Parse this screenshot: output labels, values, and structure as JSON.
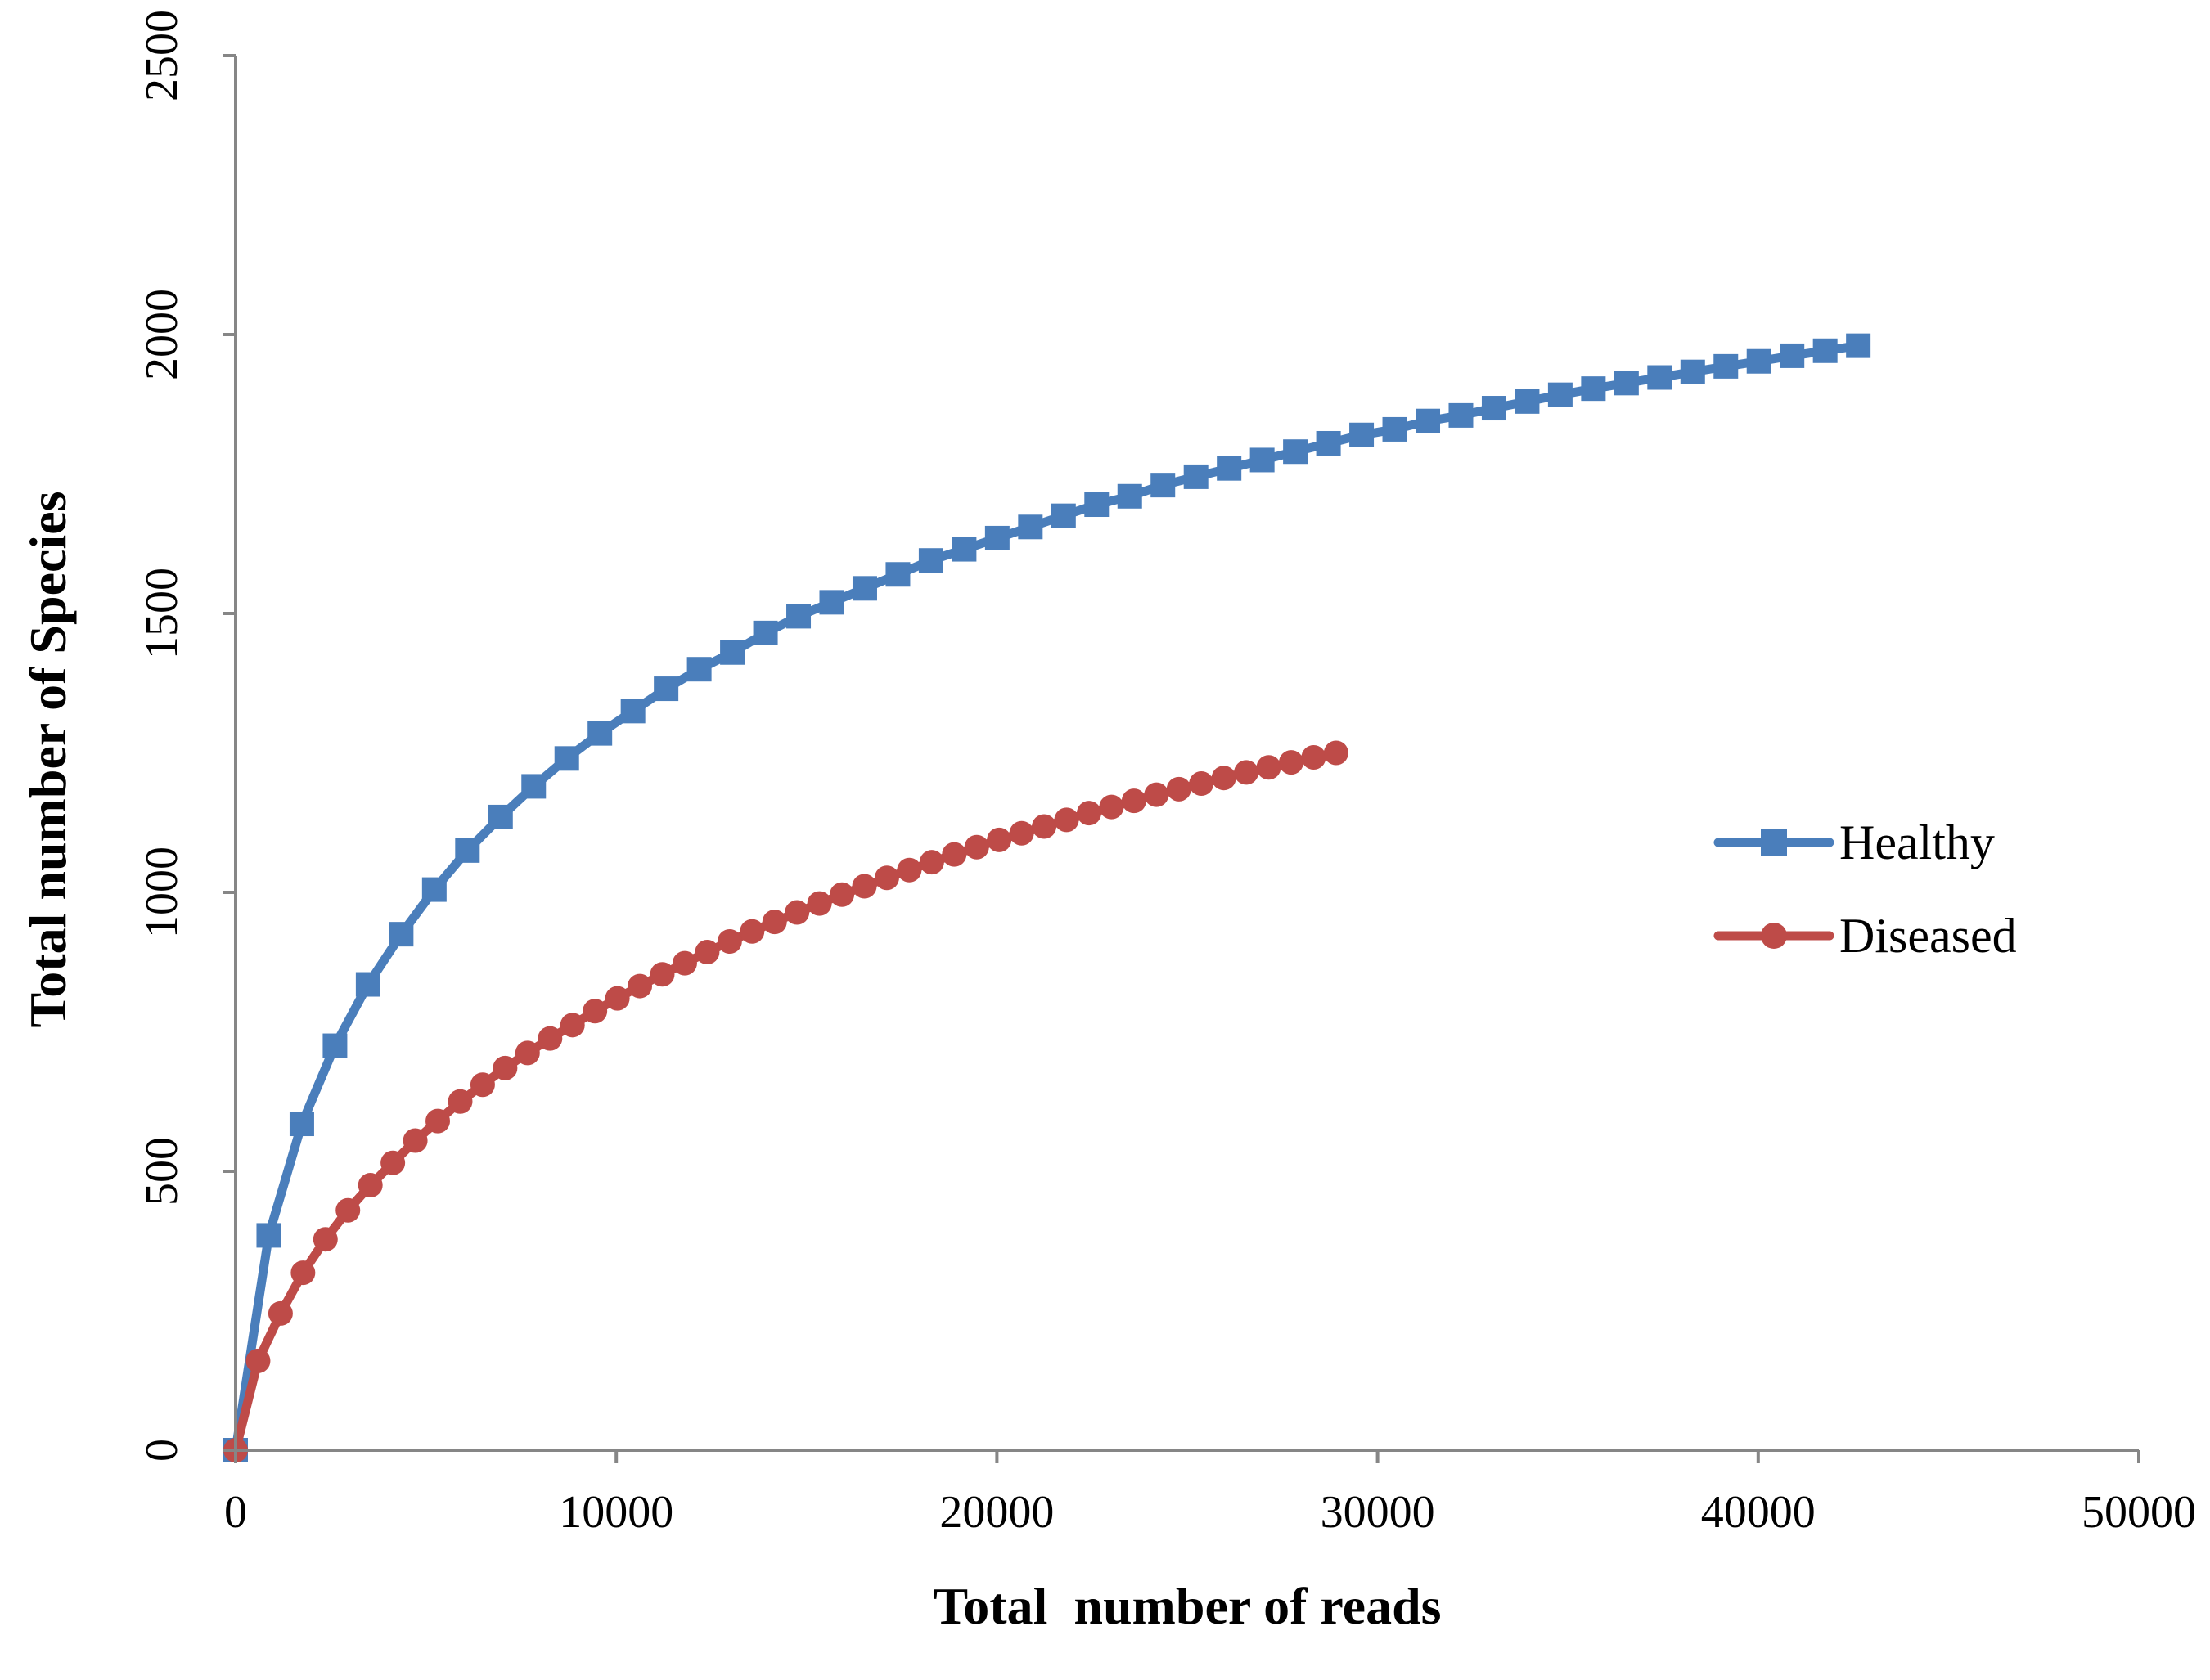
{
  "chart_data": {
    "type": "line",
    "xlabel": "Total  number of reads",
    "ylabel": "Total number of Species",
    "xlim": [
      0,
      50000
    ],
    "ylim": [
      0,
      2500
    ],
    "x_ticks": [
      "0",
      "10000",
      "20000",
      "30000",
      "40000",
      "50000"
    ],
    "y_ticks": [
      "0",
      "500",
      "1000",
      "1500",
      "2000",
      "2500"
    ],
    "grid": false,
    "legend_position": "right",
    "series": [
      {
        "name": "Healthy",
        "color": "#4A7EBB",
        "marker": "square",
        "points": [
          [
            0,
            0
          ],
          [
            870,
            385
          ],
          [
            1740,
            585
          ],
          [
            2610,
            725
          ],
          [
            3480,
            835
          ],
          [
            4350,
            925
          ],
          [
            5220,
            1005
          ],
          [
            6090,
            1075
          ],
          [
            6960,
            1135
          ],
          [
            7830,
            1190
          ],
          [
            8700,
            1240
          ],
          [
            9570,
            1285
          ],
          [
            10440,
            1325
          ],
          [
            11310,
            1365
          ],
          [
            12180,
            1400
          ],
          [
            13050,
            1430
          ],
          [
            13920,
            1465
          ],
          [
            14790,
            1495
          ],
          [
            15660,
            1520
          ],
          [
            16530,
            1545
          ],
          [
            17400,
            1570
          ],
          [
            18270,
            1595
          ],
          [
            19140,
            1615
          ],
          [
            20010,
            1635
          ],
          [
            20880,
            1655
          ],
          [
            21750,
            1675
          ],
          [
            22620,
            1695
          ],
          [
            23490,
            1710
          ],
          [
            24360,
            1730
          ],
          [
            25230,
            1745
          ],
          [
            26100,
            1760
          ],
          [
            26970,
            1775
          ],
          [
            27840,
            1790
          ],
          [
            28710,
            1805
          ],
          [
            29580,
            1820
          ],
          [
            30450,
            1830
          ],
          [
            31320,
            1845
          ],
          [
            32190,
            1855
          ],
          [
            33060,
            1868
          ],
          [
            33930,
            1880
          ],
          [
            34800,
            1892
          ],
          [
            35670,
            1903
          ],
          [
            36540,
            1913
          ],
          [
            37410,
            1923
          ],
          [
            38280,
            1933
          ],
          [
            39150,
            1943
          ],
          [
            40020,
            1952
          ],
          [
            40890,
            1962
          ],
          [
            41760,
            1971
          ],
          [
            42630,
            1980
          ]
        ]
      },
      {
        "name": "Diseased",
        "color": "#BE4B48",
        "marker": "circle",
        "points": [
          [
            0,
            0
          ],
          [
            590,
            160
          ],
          [
            1180,
            245
          ],
          [
            1770,
            318
          ],
          [
            2360,
            378
          ],
          [
            2950,
            430
          ],
          [
            3540,
            475
          ],
          [
            4130,
            515
          ],
          [
            4720,
            555
          ],
          [
            5310,
            590
          ],
          [
            5900,
            625
          ],
          [
            6490,
            655
          ],
          [
            7080,
            685
          ],
          [
            7670,
            712
          ],
          [
            8260,
            738
          ],
          [
            8850,
            762
          ],
          [
            9440,
            787
          ],
          [
            10030,
            810
          ],
          [
            10620,
            832
          ],
          [
            11210,
            853
          ],
          [
            11800,
            873
          ],
          [
            12390,
            893
          ],
          [
            12980,
            912
          ],
          [
            13570,
            930
          ],
          [
            14160,
            947
          ],
          [
            14750,
            964
          ],
          [
            15340,
            980
          ],
          [
            15930,
            996
          ],
          [
            16520,
            1011
          ],
          [
            17110,
            1026
          ],
          [
            17700,
            1040
          ],
          [
            18290,
            1054
          ],
          [
            18880,
            1068
          ],
          [
            19470,
            1081
          ],
          [
            20060,
            1094
          ],
          [
            20650,
            1106
          ],
          [
            21240,
            1118
          ],
          [
            21830,
            1130
          ],
          [
            22420,
            1142
          ],
          [
            23010,
            1153
          ],
          [
            23600,
            1164
          ],
          [
            24190,
            1175
          ],
          [
            24780,
            1185
          ],
          [
            25370,
            1195
          ],
          [
            25960,
            1205
          ],
          [
            26550,
            1215
          ],
          [
            27140,
            1224
          ],
          [
            27730,
            1233
          ],
          [
            28320,
            1242
          ],
          [
            28910,
            1250
          ]
        ]
      }
    ]
  }
}
